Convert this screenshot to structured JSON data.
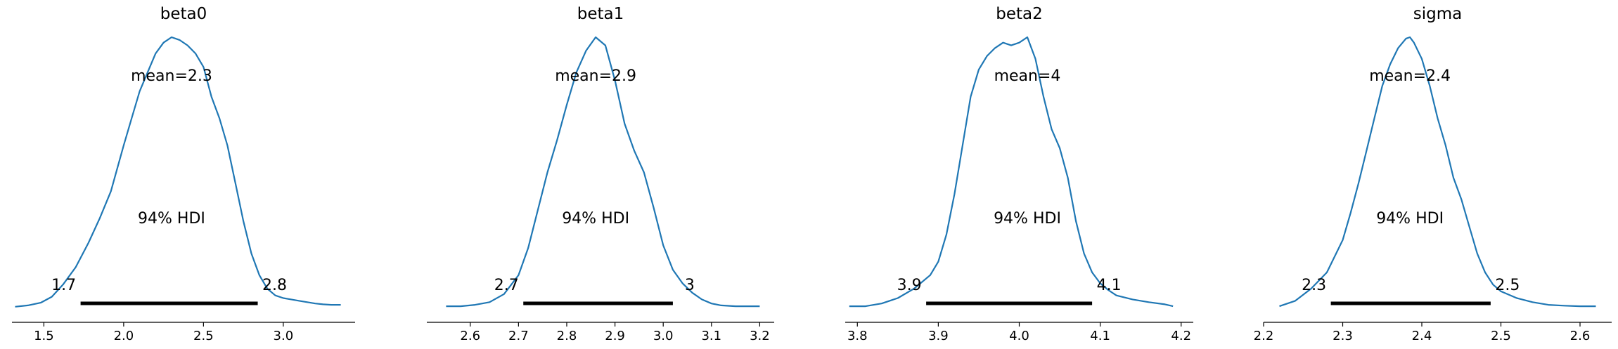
{
  "chart_data": [
    {
      "type": "line",
      "title": "beta0",
      "mean_label": "mean=2.3",
      "hdi_label": "94% HDI",
      "hdi": [
        1.73,
        2.84
      ],
      "hdi_labels": [
        "1.7",
        "2.8"
      ],
      "xlim": [
        1.3,
        3.45
      ],
      "xticks": [
        1.5,
        2.0,
        2.5,
        3.0
      ],
      "xtick_labels": [
        "1.5",
        "2.0",
        "2.5",
        "3.0"
      ],
      "density": {
        "x": [
          1.32,
          1.4,
          1.48,
          1.55,
          1.62,
          1.7,
          1.78,
          1.85,
          1.92,
          2.0,
          2.05,
          2.1,
          2.15,
          2.2,
          2.25,
          2.3,
          2.35,
          2.4,
          2.45,
          2.5,
          2.55,
          2.6,
          2.65,
          2.7,
          2.75,
          2.8,
          2.85,
          2.9,
          2.95,
          3.0,
          3.05,
          3.1,
          3.15,
          3.2,
          3.25,
          3.3,
          3.36
        ],
        "y": [
          0.003,
          0.008,
          0.018,
          0.04,
          0.085,
          0.15,
          0.24,
          0.33,
          0.43,
          0.6,
          0.7,
          0.8,
          0.87,
          0.94,
          0.98,
          1.0,
          0.99,
          0.97,
          0.94,
          0.89,
          0.78,
          0.7,
          0.6,
          0.46,
          0.32,
          0.2,
          0.12,
          0.07,
          0.045,
          0.035,
          0.03,
          0.025,
          0.02,
          0.015,
          0.012,
          0.01,
          0.01
        ]
      }
    },
    {
      "type": "line",
      "title": "beta1",
      "mean_label": "mean=2.9",
      "hdi_label": "94% HDI",
      "hdi": [
        2.71,
        3.02
      ],
      "hdi_labels": [
        "2.7",
        "3"
      ],
      "xlim": [
        2.51,
        3.23
      ],
      "xticks": [
        2.6,
        2.7,
        2.8,
        2.9,
        3.0,
        3.1,
        3.2
      ],
      "xtick_labels": [
        "2.6",
        "2.7",
        "2.8",
        "2.9",
        "3.0",
        "3.1",
        "3.2"
      ],
      "density": {
        "x": [
          2.55,
          2.58,
          2.61,
          2.64,
          2.67,
          2.7,
          2.72,
          2.74,
          2.76,
          2.78,
          2.8,
          2.82,
          2.84,
          2.86,
          2.88,
          2.9,
          2.92,
          2.94,
          2.96,
          2.98,
          3.0,
          3.02,
          3.04,
          3.06,
          3.08,
          3.1,
          3.12,
          3.15,
          3.18,
          3.2
        ],
        "y": [
          0.005,
          0.005,
          0.01,
          0.02,
          0.05,
          0.12,
          0.22,
          0.36,
          0.5,
          0.62,
          0.75,
          0.87,
          0.95,
          1.0,
          0.97,
          0.84,
          0.68,
          0.58,
          0.5,
          0.37,
          0.23,
          0.14,
          0.09,
          0.055,
          0.03,
          0.015,
          0.008,
          0.005,
          0.005,
          0.005
        ]
      }
    },
    {
      "type": "line",
      "title": "beta2",
      "mean_label": "mean=4",
      "hdi_label": "94% HDI",
      "hdi": [
        3.885,
        4.09
      ],
      "hdi_labels": [
        "3.9",
        "4.1"
      ],
      "xlim": [
        3.785,
        4.215
      ],
      "xticks": [
        3.8,
        3.9,
        4.0,
        4.1,
        4.2
      ],
      "xtick_labels": [
        "3.8",
        "3.9",
        "4.0",
        "4.1",
        "4.2"
      ],
      "density": {
        "x": [
          3.79,
          3.81,
          3.83,
          3.85,
          3.87,
          3.89,
          3.9,
          3.91,
          3.92,
          3.93,
          3.94,
          3.95,
          3.96,
          3.97,
          3.98,
          3.99,
          4.0,
          4.01,
          4.02,
          4.03,
          4.04,
          4.05,
          4.06,
          4.07,
          4.08,
          4.09,
          4.1,
          4.11,
          4.12,
          4.14,
          4.16,
          4.18,
          4.19
        ],
        "y": [
          0.005,
          0.005,
          0.015,
          0.035,
          0.07,
          0.12,
          0.17,
          0.27,
          0.42,
          0.6,
          0.78,
          0.88,
          0.93,
          0.96,
          0.98,
          0.97,
          0.98,
          1.0,
          0.92,
          0.78,
          0.66,
          0.59,
          0.48,
          0.32,
          0.2,
          0.13,
          0.09,
          0.065,
          0.045,
          0.03,
          0.02,
          0.012,
          0.005
        ]
      }
    },
    {
      "type": "line",
      "title": "sigma",
      "mean_label": "mean=2.4",
      "hdi_label": "94% HDI",
      "hdi": [
        2.285,
        2.487
      ],
      "hdi_labels": [
        "2.3",
        "2.5"
      ],
      "xlim": [
        2.2,
        2.64
      ],
      "xticks": [
        2.2,
        2.3,
        2.4,
        2.5,
        2.6
      ],
      "xtick_labels": [
        "2.2",
        "2.3",
        "2.4",
        "2.5",
        "2.6"
      ],
      "density": {
        "x": [
          2.22,
          2.24,
          2.26,
          2.28,
          2.3,
          2.31,
          2.32,
          2.33,
          2.34,
          2.35,
          2.36,
          2.37,
          2.38,
          2.385,
          2.39,
          2.4,
          2.41,
          2.42,
          2.43,
          2.44,
          2.45,
          2.46,
          2.47,
          2.48,
          2.49,
          2.5,
          2.52,
          2.54,
          2.56,
          2.58,
          2.6,
          2.62
        ],
        "y": [
          0.005,
          0.025,
          0.07,
          0.13,
          0.25,
          0.35,
          0.46,
          0.58,
          0.7,
          0.82,
          0.9,
          0.96,
          0.995,
          1.0,
          0.98,
          0.92,
          0.82,
          0.7,
          0.6,
          0.48,
          0.4,
          0.3,
          0.2,
          0.13,
          0.085,
          0.06,
          0.035,
          0.02,
          0.01,
          0.007,
          0.005,
          0.005
        ]
      }
    }
  ],
  "colors": {
    "density_line": "#1f77b4",
    "hdi_bar": "#000000",
    "axis": "#000000"
  }
}
